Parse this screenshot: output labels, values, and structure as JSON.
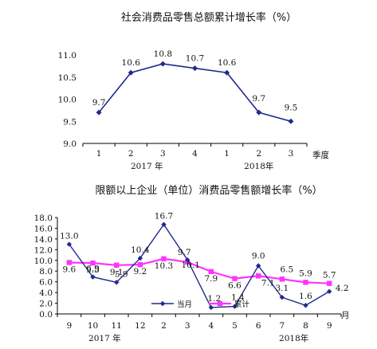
{
  "chart_data": [
    {
      "type": "line",
      "title": "社会消费品零售总额累计增长率（%）",
      "categories": [
        "1",
        "2",
        "3",
        "4",
        "1",
        "2",
        "3"
      ],
      "year_labels": [
        {
          "text": "2017 年",
          "categories": [
            0,
            3
          ]
        },
        {
          "text": "2018年",
          "categories": [
            4,
            6
          ]
        }
      ],
      "xlabel": "季度",
      "ylabel": "",
      "ylim": [
        9.0,
        11.0
      ],
      "yticks": [
        "9.0",
        "9.5",
        "10.0",
        "10.5",
        "11.0"
      ],
      "grid": false,
      "series": [
        {
          "values": [
            9.7,
            10.6,
            10.8,
            10.7,
            10.6,
            9.7,
            9.5
          ],
          "labels": [
            "9.7",
            "10.6",
            "10.8",
            "10.7",
            "10.6",
            "9.7",
            "9.5"
          ],
          "color": "#1f2a8c",
          "marker": "diamond"
        }
      ]
    },
    {
      "type": "line",
      "title": "限额以上企业（单位）消费品零售额增长率（%）",
      "categories": [
        "9",
        "10",
        "11",
        "12",
        "2",
        "3",
        "4",
        "5",
        "6",
        "7",
        "8",
        "9"
      ],
      "year_labels": [
        {
          "text": "2017 年",
          "categories": [
            0,
            3
          ]
        },
        {
          "text": "2018年",
          "categories": [
            9,
            10
          ]
        }
      ],
      "xlabel": "月",
      "ylabel": "",
      "ylim": [
        0.0,
        18.0
      ],
      "yticks": [
        "0.0",
        "2.0",
        "4.0",
        "6.0",
        "8.0",
        "10.0",
        "12.0",
        "14.0",
        "16.0",
        "18.0"
      ],
      "grid": false,
      "legend": "bottom-center",
      "series": [
        {
          "name": "当月",
          "values": [
            13.0,
            6.9,
            5.9,
            10.4,
            16.7,
            10.1,
            1.2,
            1.4,
            9.0,
            3.1,
            1.6,
            4.2
          ],
          "labels": [
            "13.0",
            "6.9",
            "5.9",
            "10.4",
            "16.7",
            "10.1",
            "1.2",
            "1.4",
            "9.0",
            "3.1",
            "1.6",
            "4.2"
          ],
          "color": "#1f2a8c",
          "marker": "diamond"
        },
        {
          "name": "累计",
          "values": [
            9.6,
            9.5,
            9.1,
            9.2,
            10.3,
            9.7,
            7.9,
            6.6,
            7.1,
            6.5,
            5.9,
            5.7
          ],
          "labels": [
            "9.6",
            "9.5",
            "9.1",
            "9.2",
            "10.3",
            "9.7",
            "7.9",
            "6.6",
            "7.1",
            "6.5",
            "5.9",
            "5.7"
          ],
          "color": "#ff33ff",
          "marker": "square"
        }
      ]
    }
  ]
}
